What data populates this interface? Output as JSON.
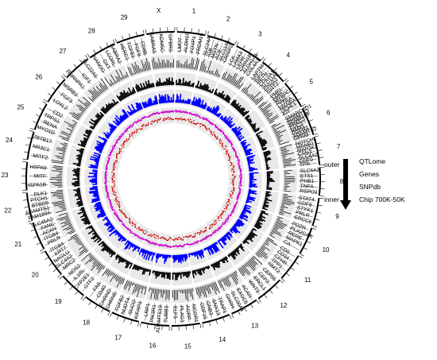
{
  "chromosomes": [
    "1",
    "2",
    "3",
    "4",
    "5",
    "6",
    "7",
    "8",
    "9",
    "10",
    "11",
    "12",
    "13",
    "14",
    "15",
    "16",
    "17",
    "18",
    "19",
    "20",
    "21",
    "22",
    "23",
    "24",
    "25",
    "26",
    "27",
    "28",
    "29",
    "X"
  ],
  "legend": {
    "outer_label": "outer",
    "inner_label": "inner",
    "tracks": [
      "QTLome",
      "Genes",
      "SNPdb",
      "Chip 700K-50K"
    ]
  },
  "genes": {
    "chr1": [
      "LMO7",
      "ALDH16",
      "FOXP1",
      "PRDM16"
    ],
    "chr2": [
      "SLC24A",
      "IGB",
      "MSTN",
      "ACE",
      "SLC11A1",
      "CRISP2"
    ],
    "chr3": [
      "LCK",
      "LAMA3",
      "LEPR",
      "GRIN1B",
      "ALDH1A1",
      "COL4A1"
    ],
    "chr4": [
      "LAPTM4",
      "IGF2",
      "RETN",
      "COL2A1",
      "SLC11A2",
      "EPHA2",
      "SIRT2"
    ],
    "chr5": [
      "PMEL",
      "AMH",
      "MYBPC1",
      "RIN3",
      "L1TRA",
      "MANBA",
      "UCHL1",
      "KIT"
    ],
    "chr6": [
      "SMARCAD1",
      "ADAMTS3",
      "SOWAHB",
      "PRKG2",
      "EVC2",
      "HMX1",
      "FGFR3",
      "ADAMTS2",
      "GPAM"
    ],
    "chr7": [
      "NOTCH1",
      "MANB1",
      "MAP2K2",
      "CSN3",
      "SLC4A2",
      "GDF9",
      "TPR"
    ],
    "chr8": [
      "SLC6A3",
      "ETS1",
      "PHB1",
      "TNFA",
      "RSPO3"
    ],
    "chr9": [
      "STAT4",
      "GDF8",
      "STYK1",
      "PRLR",
      "ERCC6"
    ],
    "chr10": [
      "PDZR",
      "PLA2G4A",
      "RERE",
      "MAPK1",
      "CA"
    ],
    "chr11": [
      "CD5",
      "CD34",
      "CFHR",
      "TPP1",
      "NMT2"
    ],
    "chr12": [
      "CEP55",
      "CEP3",
      "ERCL1",
      "WNT3"
    ],
    "chr13": [
      "ACAN",
      "EXOC5",
      "SLC30A4",
      "GHRH"
    ],
    "chr14": [
      "TRAP1",
      "SNX13",
      "GNB3",
      "GDF15"
    ],
    "chr15": [
      "NCOR1",
      "AGRP",
      "PLAG1",
      "ELF3"
    ],
    "chr16": [
      "TUBB3",
      "ADAMTS19",
      "PIK3R1",
      "LRP1"
    ],
    "chr17": [
      "KIFAP3",
      "SUCO",
      "NUDT4",
      "TGFB2"
    ],
    "chr18": [
      "CHRNE",
      "CHRND",
      "CD40",
      "FAS"
    ],
    "chr19": [
      "GTF2",
      "CYP2E1",
      "IL1RL",
      "NOS2"
    ],
    "chr20": [
      "MRC2",
      "SLC4A2",
      "NAGLU",
      "KRT7",
      "ITGB4"
    ],
    "chr21": [
      "PRLR",
      "ITGB4",
      "ACAN",
      "FANC",
      "SLC45A2"
    ],
    "chr22": [
      "FAM189A",
      "ADAMTS1",
      "BTBD9",
      "PTCH1",
      "DLK1"
    ],
    "chr23": [
      "HSPA1B",
      "MITF",
      "HSPA9"
    ],
    "chr24": [
      "MITF2",
      "NR3C1",
      "ZBTB17"
    ],
    "chr25": [
      "MYO1D",
      "RENA",
      "TRPS1",
      "CD2"
    ],
    "chr26": [
      "LOXL2",
      "FGF3",
      "MSRB3"
    ],
    "chr27": [
      "HNRNPA1",
      "IGF1",
      "SLC22A5"
    ],
    "chr28": [
      "NANOG",
      "OXT",
      "LCORL",
      "GABRA2"
    ],
    "chr29": [
      "HERC1",
      "TGFB1",
      "FGF8",
      "CD8B"
    ],
    "chrX": [
      "GABRA3",
      "KDM5C",
      "TGFBR3"
    ]
  },
  "colors": {
    "qtlome": "#111111",
    "genes": "#000000",
    "snpdb": "#0000ff",
    "chip_700k": "#cc00cc",
    "chip_50k": "#cc0000",
    "track_bg": "#e8e8e8"
  }
}
